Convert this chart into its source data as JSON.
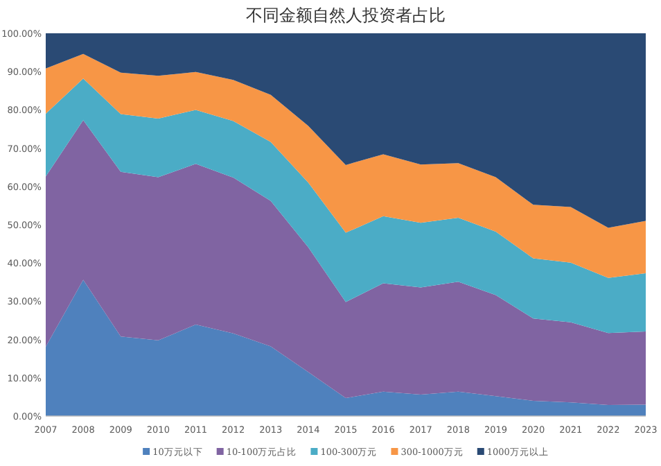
{
  "chart_data": {
    "type": "area",
    "title": "不同金额自然人投资者占比",
    "stacked": true,
    "legend": "bottom",
    "categories": [
      "2007",
      "2008",
      "2009",
      "2010",
      "2011",
      "2012",
      "2013",
      "2014",
      "2015",
      "2016",
      "2017",
      "2018",
      "2019",
      "2020",
      "2021",
      "2022",
      "2023"
    ],
    "ylim": [
      0,
      100
    ],
    "yticks": [
      {
        "value": 0,
        "label": "0.00%"
      },
      {
        "value": 10,
        "label": "10.00%"
      },
      {
        "value": 20,
        "label": "20.00%"
      },
      {
        "value": 30,
        "label": "30.00%"
      },
      {
        "value": 40,
        "label": "40.00%"
      },
      {
        "value": 50,
        "label": "50.00%"
      },
      {
        "value": 60,
        "label": "60.00%"
      },
      {
        "value": 70,
        "label": "70.00%"
      },
      {
        "value": 80,
        "label": "80.00%"
      },
      {
        "value": 90,
        "label": "90.00%"
      },
      {
        "value": 100,
        "label": "100.00%"
      }
    ],
    "series": [
      {
        "name": "10万元以下",
        "color": "#4f81bd",
        "values": [
          18.1,
          35.6,
          20.8,
          19.8,
          23.9,
          21.6,
          18.2,
          11.5,
          4.7,
          6.4,
          5.6,
          6.4,
          5.2,
          4.0,
          3.6,
          2.9,
          3.0
        ]
      },
      {
        "name": "10-100万元占比",
        "color": "#8064a2",
        "values": [
          44.5,
          41.7,
          43.0,
          42.6,
          42.0,
          40.7,
          38.0,
          32.6,
          25.1,
          28.3,
          28.0,
          28.7,
          26.4,
          21.5,
          20.9,
          18.8,
          19.1
        ]
      },
      {
        "name": "100-300万元",
        "color": "#4bacc6",
        "values": [
          16.4,
          10.9,
          15.1,
          15.3,
          14.1,
          14.8,
          15.4,
          16.9,
          18.1,
          17.5,
          16.9,
          16.7,
          16.6,
          15.7,
          15.6,
          14.4,
          15.2
        ]
      },
      {
        "name": "300-1000万元",
        "color": "#f79646",
        "values": [
          11.8,
          6.4,
          10.8,
          11.2,
          9.9,
          10.7,
          12.3,
          14.8,
          17.7,
          16.2,
          15.2,
          14.3,
          14.2,
          14.0,
          14.5,
          13.1,
          13.7
        ]
      },
      {
        "name": "1000万元以上",
        "color": "#2a4a74",
        "values": [
          9.2,
          5.4,
          10.3,
          11.1,
          10.1,
          12.2,
          16.1,
          24.2,
          34.4,
          31.6,
          34.3,
          33.9,
          37.6,
          44.8,
          45.4,
          50.8,
          49.0
        ]
      }
    ]
  }
}
